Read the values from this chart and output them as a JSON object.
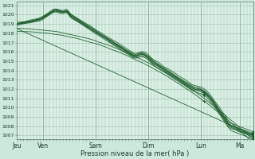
{
  "title": "",
  "xlabel": "Pression niveau de la mer( hPa )",
  "ylabel": "",
  "ylim": [
    1007,
    1021
  ],
  "yticks": [
    1007,
    1008,
    1009,
    1010,
    1011,
    1012,
    1013,
    1014,
    1015,
    1016,
    1017,
    1018,
    1019,
    1020,
    1021
  ],
  "x_day_labels": [
    "Jeu",
    "Ven",
    "Sam",
    "Dim",
    "Lun",
    "Ma"
  ],
  "x_day_positions": [
    0,
    48,
    144,
    240,
    336,
    408
  ],
  "bg_color": "#cce8dc",
  "grid_color": "#9dbfad",
  "line_color": "#1a5c2a",
  "plot_bg": "#daf0e4",
  "n_points": 450,
  "total_hours": 432
}
